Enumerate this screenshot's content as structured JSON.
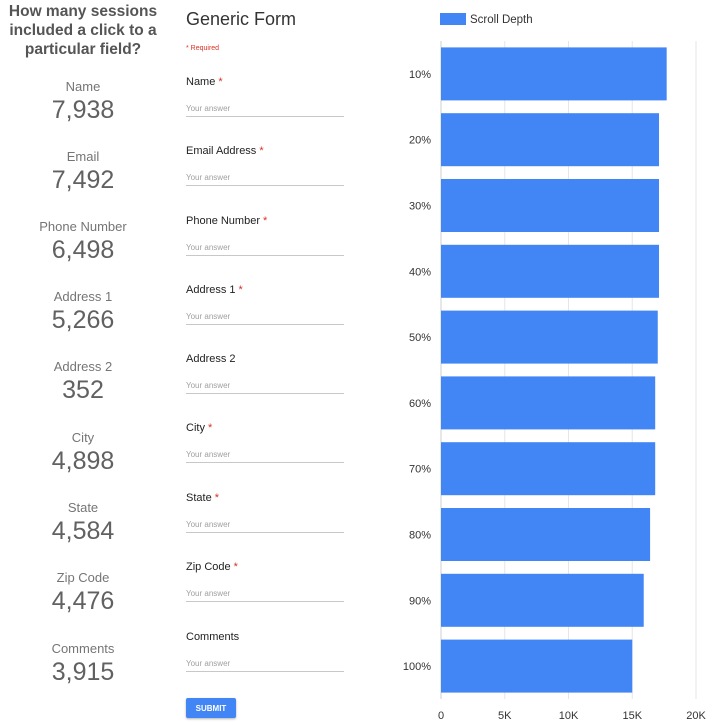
{
  "stats_panel": {
    "title": "How many sessions included a click to a particular field?",
    "items": [
      {
        "label": "Name",
        "value": "7,938"
      },
      {
        "label": "Email",
        "value": "7,492"
      },
      {
        "label": "Phone Number",
        "value": "6,498"
      },
      {
        "label": "Address 1",
        "value": "5,266"
      },
      {
        "label": "Address 2",
        "value": "352"
      },
      {
        "label": "City",
        "value": "4,898"
      },
      {
        "label": "State",
        "value": "4,584"
      },
      {
        "label": "Zip Code",
        "value": "4,476"
      },
      {
        "label": "Comments",
        "value": "3,915"
      }
    ]
  },
  "form": {
    "title": "Generic Form",
    "required_note": "* Required",
    "fields": [
      {
        "label": "Name",
        "required": true,
        "placeholder": "Your answer"
      },
      {
        "label": "Email Address",
        "required": true,
        "placeholder": "Your answer"
      },
      {
        "label": "Phone Number",
        "required": true,
        "placeholder": "Your answer"
      },
      {
        "label": "Address 1",
        "required": true,
        "placeholder": "Your answer"
      },
      {
        "label": "Address 2",
        "required": false,
        "placeholder": "Your answer"
      },
      {
        "label": "City",
        "required": true,
        "placeholder": "Your answer"
      },
      {
        "label": "State",
        "required": true,
        "placeholder": "Your answer"
      },
      {
        "label": "Zip Code",
        "required": true,
        "placeholder": "Your answer"
      },
      {
        "label": "Comments",
        "required": false,
        "placeholder": "Your answer"
      }
    ],
    "submit_label": "SUBMIT",
    "accent_color": "#4285f4",
    "required_color": "#d93025"
  },
  "chart_data": {
    "type": "bar",
    "orientation": "horizontal",
    "categories": [
      "10%",
      "20%",
      "30%",
      "40%",
      "50%",
      "60%",
      "70%",
      "80%",
      "90%",
      "100%"
    ],
    "series": [
      {
        "name": "Scroll Depth",
        "color": "#4285f4",
        "values": [
          17700,
          17100,
          17100,
          17100,
          17000,
          16800,
          16800,
          16400,
          15900,
          15000
        ]
      }
    ],
    "xlim": [
      0,
      20000
    ],
    "xticks": [
      "0",
      "5K",
      "10K",
      "15K",
      "20K"
    ],
    "xtick_values": [
      0,
      5000,
      10000,
      15000,
      20000
    ],
    "grid": true,
    "legend_position": "top-left"
  }
}
